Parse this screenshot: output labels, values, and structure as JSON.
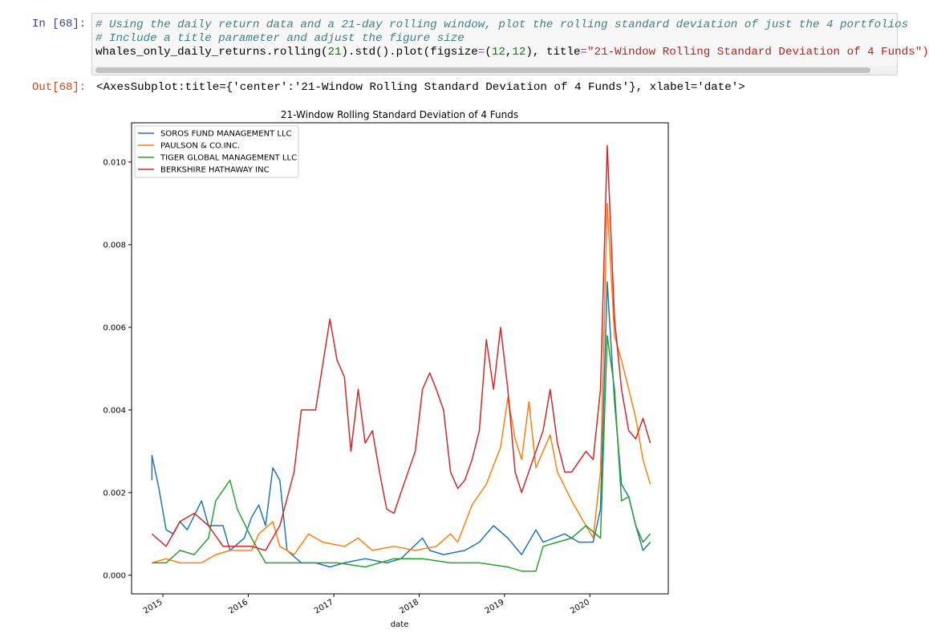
{
  "notebook": {
    "in_prompt": "In [68]:",
    "out_prompt": "Out[68]:",
    "code_line_1": "# Using the daily return data and a 21-day rolling window, plot the rolling standard deviation of just the 4 portfolios",
    "code_line_2": "# Include a title parameter and adjust the figure size",
    "code_line_3_pre": "whales_only_daily_returns.rolling(",
    "code_line_3_num1": "21",
    "code_line_3_mid": ").std().plot(figsize",
    "code_line_3_eq1": "=",
    "code_line_3_tuple_open": "(",
    "code_line_3_num2": "12",
    "code_line_3_comma": ",",
    "code_line_3_num3": "12",
    "code_line_3_after": "), title",
    "code_line_3_eq2": "=",
    "code_line_3_str": "\"21-Window Rolling Standard Deviation of 4 Funds\")",
    "output_repr": "<AxesSubplot:title={'center':'21-Window Rolling Standard Deviation of 4 Funds'}, xlabel='date'>"
  },
  "chart_data": {
    "type": "line",
    "title": "21-Window Rolling Standard Deviation of 4 Funds",
    "xlabel": "date",
    "ylabel": "",
    "x_ticks": [
      "2015",
      "2016",
      "2017",
      "2018",
      "2019",
      "2020"
    ],
    "y_ticks": [
      "0.000",
      "0.002",
      "0.004",
      "0.006",
      "0.008",
      "0.010"
    ],
    "ylim": [
      -0.00045,
      0.01095
    ],
    "legend_position": "top-left",
    "grid": false,
    "series": [
      {
        "name": "SOROS FUND MANAGEMENT LLC",
        "color": "#1f77b4",
        "points": [
          [
            "2014-11",
            0.0023
          ],
          [
            "2014-11",
            0.0029
          ],
          [
            "2014-12",
            0.0021
          ],
          [
            "2015-01",
            0.0011
          ],
          [
            "2015-02",
            0.001
          ],
          [
            "2015-03",
            0.0013
          ],
          [
            "2015-04",
            0.0011
          ],
          [
            "2015-06",
            0.0018
          ],
          [
            "2015-07",
            0.0012
          ],
          [
            "2015-09",
            0.0012
          ],
          [
            "2015-10",
            0.0006
          ],
          [
            "2015-12",
            0.0009
          ],
          [
            "2016-01",
            0.0014
          ],
          [
            "2016-02",
            0.0017
          ],
          [
            "2016-03",
            0.0012
          ],
          [
            "2016-04",
            0.0026
          ],
          [
            "2016-05",
            0.0023
          ],
          [
            "2016-06",
            0.0006
          ],
          [
            "2016-08",
            0.0003
          ],
          [
            "2016-10",
            0.0003
          ],
          [
            "2016-12",
            0.0002
          ],
          [
            "2017-02",
            0.0003
          ],
          [
            "2017-05",
            0.0004
          ],
          [
            "2017-08",
            0.0003
          ],
          [
            "2017-10",
            0.0004
          ],
          [
            "2018-01",
            0.0009
          ],
          [
            "2018-02",
            0.0006
          ],
          [
            "2018-04",
            0.0005
          ],
          [
            "2018-07",
            0.0006
          ],
          [
            "2018-09",
            0.0008
          ],
          [
            "2018-11",
            0.0012
          ],
          [
            "2019-01",
            0.0009
          ],
          [
            "2019-03",
            0.0005
          ],
          [
            "2019-05",
            0.0011
          ],
          [
            "2019-06",
            0.0008
          ],
          [
            "2019-09",
            0.001
          ],
          [
            "2019-11",
            0.0008
          ],
          [
            "2020-01",
            0.0008
          ],
          [
            "2020-02",
            0.0016
          ],
          [
            "2020-03",
            0.0071
          ],
          [
            "2020-04",
            0.0042
          ],
          [
            "2020-05",
            0.0022
          ],
          [
            "2020-06",
            0.0019
          ],
          [
            "2020-07",
            0.0012
          ],
          [
            "2020-08",
            0.0006
          ],
          [
            "2020-09",
            0.0008
          ]
        ]
      },
      {
        "name": "PAULSON & CO.INC.",
        "color": "#ff7f0e",
        "points": [
          [
            "2014-11",
            0.0003
          ],
          [
            "2015-01",
            0.0004
          ],
          [
            "2015-03",
            0.0003
          ],
          [
            "2015-06",
            0.0003
          ],
          [
            "2015-08",
            0.0005
          ],
          [
            "2015-10",
            0.0006
          ],
          [
            "2016-01",
            0.0006
          ],
          [
            "2016-02",
            0.001
          ],
          [
            "2016-04",
            0.0013
          ],
          [
            "2016-05",
            0.0007
          ],
          [
            "2016-07",
            0.0005
          ],
          [
            "2016-09",
            0.001
          ],
          [
            "2016-11",
            0.0008
          ],
          [
            "2017-02",
            0.0007
          ],
          [
            "2017-04",
            0.0009
          ],
          [
            "2017-06",
            0.0006
          ],
          [
            "2017-09",
            0.0007
          ],
          [
            "2017-12",
            0.0006
          ],
          [
            "2018-03",
            0.0007
          ],
          [
            "2018-05",
            0.001
          ],
          [
            "2018-06",
            0.0008
          ],
          [
            "2018-08",
            0.0017
          ],
          [
            "2018-10",
            0.0022
          ],
          [
            "2018-12",
            0.0031
          ],
          [
            "2019-01",
            0.0043
          ],
          [
            "2019-02",
            0.0033
          ],
          [
            "2019-03",
            0.0028
          ],
          [
            "2019-04",
            0.0042
          ],
          [
            "2019-05",
            0.0026
          ],
          [
            "2019-07",
            0.0034
          ],
          [
            "2019-08",
            0.0025
          ],
          [
            "2019-10",
            0.0018
          ],
          [
            "2019-12",
            0.0012
          ],
          [
            "2020-01",
            0.0009
          ],
          [
            "2020-02",
            0.0025
          ],
          [
            "2020-03",
            0.009
          ],
          [
            "2020-04",
            0.0058
          ],
          [
            "2020-05",
            0.0052
          ],
          [
            "2020-06",
            0.0045
          ],
          [
            "2020-07",
            0.0038
          ],
          [
            "2020-08",
            0.0028
          ],
          [
            "2020-09",
            0.0022
          ]
        ]
      },
      {
        "name": "TIGER GLOBAL MANAGEMENT LLC",
        "color": "#2ca02c",
        "points": [
          [
            "2014-11",
            0.0003
          ],
          [
            "2015-01",
            0.0003
          ],
          [
            "2015-03",
            0.0006
          ],
          [
            "2015-05",
            0.0005
          ],
          [
            "2015-07",
            0.0009
          ],
          [
            "2015-08",
            0.0018
          ],
          [
            "2015-10",
            0.0023
          ],
          [
            "2015-11",
            0.0016
          ],
          [
            "2016-01",
            0.0009
          ],
          [
            "2016-03",
            0.0003
          ],
          [
            "2016-06",
            0.0003
          ],
          [
            "2016-09",
            0.0003
          ],
          [
            "2017-01",
            0.0003
          ],
          [
            "2017-05",
            0.0002
          ],
          [
            "2017-09",
            0.0004
          ],
          [
            "2018-01",
            0.0004
          ],
          [
            "2018-05",
            0.0003
          ],
          [
            "2018-09",
            0.0003
          ],
          [
            "2019-01",
            0.0002
          ],
          [
            "2019-03",
            0.0001
          ],
          [
            "2019-05",
            0.0001
          ],
          [
            "2019-06",
            0.0007
          ],
          [
            "2019-08",
            0.0008
          ],
          [
            "2019-10",
            0.0009
          ],
          [
            "2019-12",
            0.0012
          ],
          [
            "2020-02",
            0.0009
          ],
          [
            "2020-03",
            0.0058
          ],
          [
            "2020-04",
            0.0045
          ],
          [
            "2020-05",
            0.0018
          ],
          [
            "2020-06",
            0.0019
          ],
          [
            "2020-07",
            0.0012
          ],
          [
            "2020-08",
            0.0008
          ],
          [
            "2020-09",
            0.001
          ]
        ]
      },
      {
        "name": "BERKSHIRE HATHAWAY INC",
        "color": "#d62728",
        "points": [
          [
            "2014-11",
            0.001
          ],
          [
            "2015-01",
            0.0007
          ],
          [
            "2015-03",
            0.0013
          ],
          [
            "2015-05",
            0.0015
          ],
          [
            "2015-07",
            0.0012
          ],
          [
            "2015-09",
            0.0007
          ],
          [
            "2016-01",
            0.0007
          ],
          [
            "2016-03",
            0.0006
          ],
          [
            "2016-05",
            0.0012
          ],
          [
            "2016-07",
            0.0025
          ],
          [
            "2016-08",
            0.004
          ],
          [
            "2016-10",
            0.004
          ],
          [
            "2016-12",
            0.0062
          ],
          [
            "2017-01",
            0.0052
          ],
          [
            "2017-02",
            0.0048
          ],
          [
            "2017-03",
            0.003
          ],
          [
            "2017-04",
            0.0045
          ],
          [
            "2017-05",
            0.0032
          ],
          [
            "2017-06",
            0.0035
          ],
          [
            "2017-07",
            0.0025
          ],
          [
            "2017-08",
            0.0016
          ],
          [
            "2017-09",
            0.0015
          ],
          [
            "2017-10",
            0.002
          ],
          [
            "2017-12",
            0.003
          ],
          [
            "2018-01",
            0.0045
          ],
          [
            "2018-02",
            0.0049
          ],
          [
            "2018-03",
            0.0045
          ],
          [
            "2018-04",
            0.004
          ],
          [
            "2018-05",
            0.0025
          ],
          [
            "2018-06",
            0.0021
          ],
          [
            "2018-07",
            0.0023
          ],
          [
            "2018-08",
            0.0028
          ],
          [
            "2018-09",
            0.0035
          ],
          [
            "2018-10",
            0.0057
          ],
          [
            "2018-11",
            0.0045
          ],
          [
            "2018-12",
            0.006
          ],
          [
            "2019-01",
            0.0045
          ],
          [
            "2019-02",
            0.0025
          ],
          [
            "2019-03",
            0.002
          ],
          [
            "2019-05",
            0.003
          ],
          [
            "2019-06",
            0.0035
          ],
          [
            "2019-07",
            0.0045
          ],
          [
            "2019-08",
            0.0032
          ],
          [
            "2019-09",
            0.0025
          ],
          [
            "2019-10",
            0.0025
          ],
          [
            "2019-12",
            0.003
          ],
          [
            "2020-01",
            0.0028
          ],
          [
            "2020-02",
            0.0045
          ],
          [
            "2020-03",
            0.0104
          ],
          [
            "2020-04",
            0.0062
          ],
          [
            "2020-05",
            0.0045
          ],
          [
            "2020-06",
            0.0035
          ],
          [
            "2020-07",
            0.0033
          ],
          [
            "2020-08",
            0.0038
          ],
          [
            "2020-09",
            0.0032
          ]
        ]
      }
    ]
  }
}
